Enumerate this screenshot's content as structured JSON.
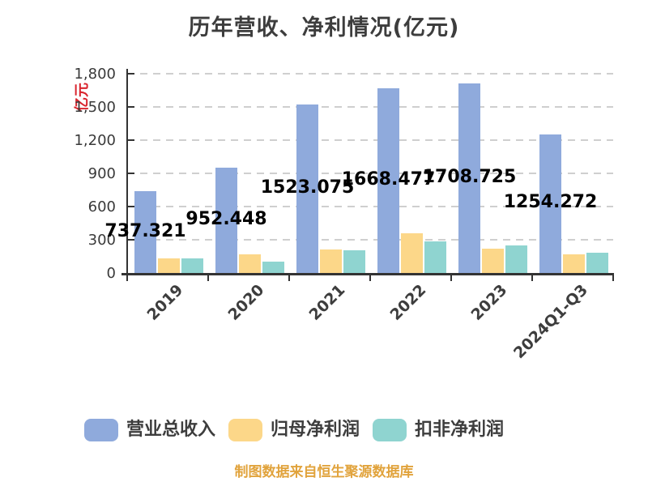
{
  "footer": "制图数据来自恒生聚源数据库",
  "footer_color": "#e1a33c",
  "chart_data": {
    "type": "bar",
    "title": "历年营收、净利情况(亿元)",
    "ylabel": "亿元",
    "ylabel_color": "#d9252e",
    "xlabel": "",
    "categories": [
      "2019",
      "2020",
      "2021",
      "2022",
      "2023",
      "2024Q1-Q3"
    ],
    "series": [
      {
        "id": "revenue",
        "name": "营业总收入",
        "color": "#8FAADC",
        "values": [
          737.321,
          952.448,
          1523.075,
          1668.477,
          1708.725,
          1254.272
        ],
        "labels": [
          "737.321",
          "952.448",
          "1523.075",
          "1668.477",
          "1708.725",
          "1254.272"
        ],
        "labels_shown": true
      },
      {
        "id": "net-profit",
        "name": "归母净利润",
        "color": "#FCD789",
        "values": [
          130,
          170,
          215,
          355,
          220,
          170
        ],
        "labels_shown": false,
        "estimated_from_pixels": true
      },
      {
        "id": "deducted-net-profit",
        "name": "扣非净利润",
        "color": "#8FD4D0",
        "values": [
          130,
          100,
          205,
          285,
          250,
          180
        ],
        "labels_shown": false,
        "estimated_from_pixels": true
      }
    ],
    "ylim": [
      0,
      1800
    ],
    "y_interval": 300,
    "y_tick_labels": [
      "0",
      "300",
      "600",
      "900",
      "1,200",
      "1,500",
      "1,800"
    ],
    "grid": "horizontal dashed light-gray",
    "legend_position": "bottom",
    "x_tick_label_rotation": 45,
    "axis_color": "#333333",
    "title_color": "#3d3d3d",
    "data_label_color": "#000000"
  }
}
